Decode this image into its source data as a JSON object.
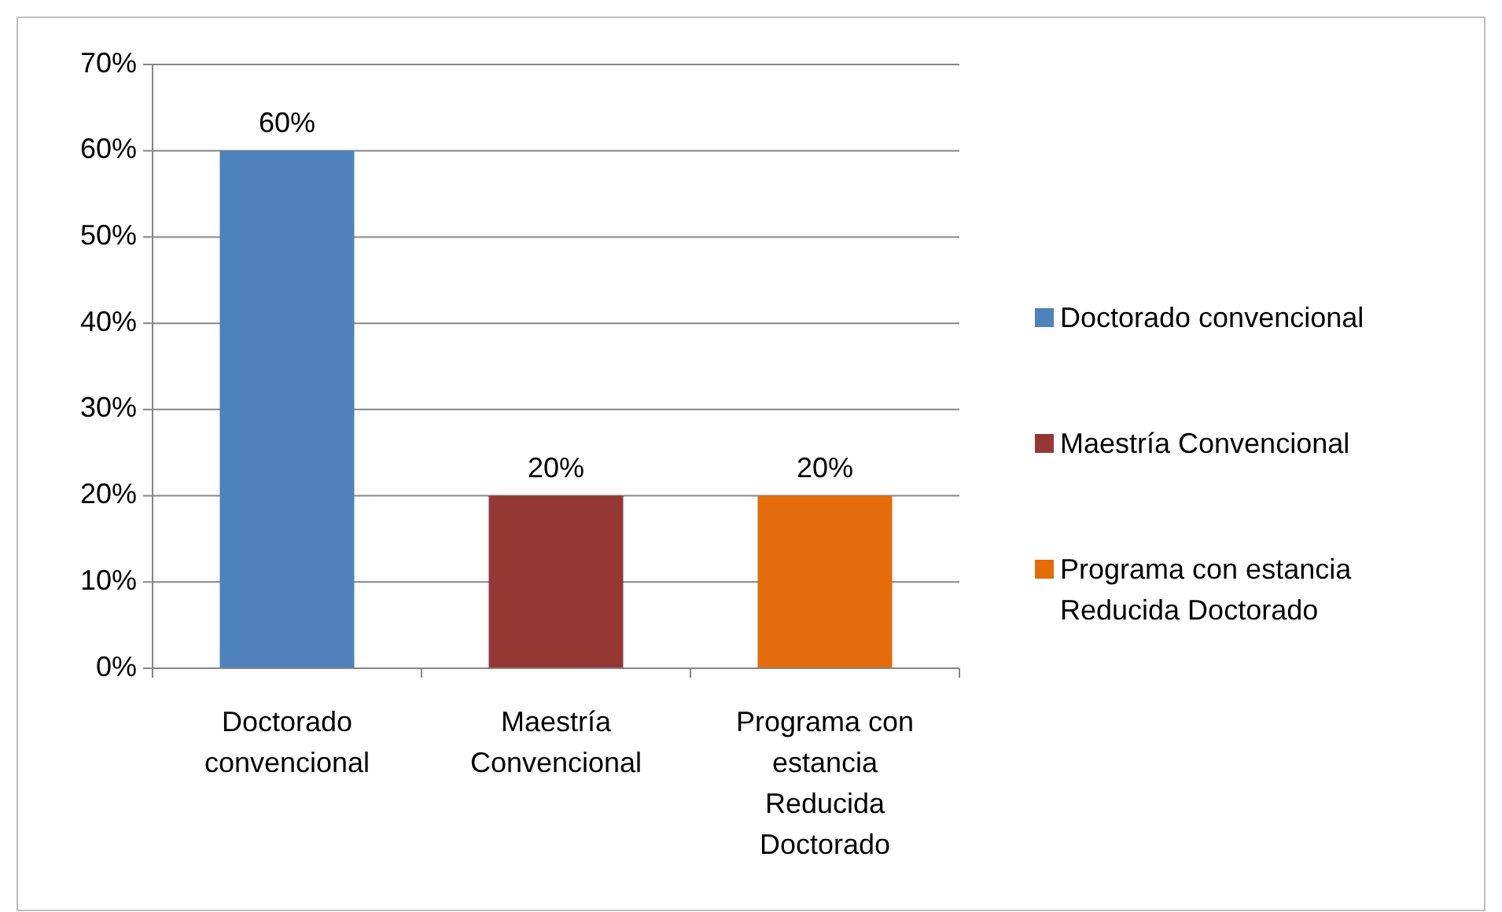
{
  "chart_data": {
    "type": "bar",
    "categories": [
      "Doctorado convencional",
      "Maestría Convencional",
      "Programa con estancia Reducida Doctorado"
    ],
    "series": [
      {
        "name": "Doctorado convencional",
        "color": "#4f81bd",
        "values": [
          60,
          null,
          null
        ],
        "value_labels": [
          "60%",
          null,
          null
        ]
      },
      {
        "name": "Maestría Convencional",
        "color": "#953735",
        "values": [
          null,
          20,
          null
        ],
        "value_labels": [
          null,
          "20%",
          null
        ]
      },
      {
        "name": "Programa con estancia Reducida Doctorado",
        "color": "#e46c0a",
        "values": [
          null,
          null,
          20
        ],
        "value_labels": [
          null,
          null,
          "20%"
        ]
      }
    ],
    "stacked": true,
    "ylim": [
      0,
      70
    ],
    "yticks": [
      {
        "value": 0,
        "label": "0%"
      },
      {
        "value": 10,
        "label": "10%"
      },
      {
        "value": 20,
        "label": "20%"
      },
      {
        "value": 30,
        "label": "30%"
      },
      {
        "value": 40,
        "label": "40%"
      },
      {
        "value": 50,
        "label": "50%"
      },
      {
        "value": 60,
        "label": "60%"
      },
      {
        "value": 70,
        "label": "70%"
      }
    ],
    "grid": "y",
    "legend": "right"
  }
}
